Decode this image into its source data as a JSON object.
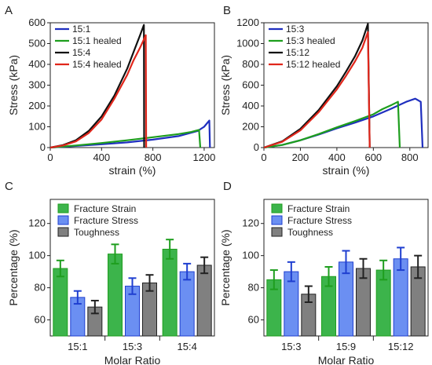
{
  "chart_data": [
    {
      "panel": "A",
      "type": "line",
      "xlabel": "strain (%)",
      "ylabel": "Stress (kPa)",
      "xlim": [
        0,
        1280
      ],
      "ylim": [
        0,
        600
      ],
      "xticks": [
        0,
        400,
        800,
        1200
      ],
      "yticks": [
        0,
        100,
        200,
        300,
        400,
        500,
        600
      ],
      "legend_position": "top-left",
      "series": [
        {
          "name": "15:1",
          "color": "#1f2fbf",
          "x": [
            0,
            200,
            400,
            600,
            800,
            1000,
            1150,
            1200,
            1220,
            1240,
            1245
          ],
          "y": [
            0,
            8,
            16,
            25,
            38,
            55,
            80,
            100,
            115,
            130,
            0
          ]
        },
        {
          "name": "15:1 healed",
          "color": "#1e9e1e",
          "x": [
            0,
            200,
            400,
            600,
            800,
            1000,
            1100,
            1160,
            1170
          ],
          "y": [
            0,
            10,
            22,
            35,
            50,
            65,
            75,
            85,
            0
          ]
        },
        {
          "name": "15:4",
          "color": "#111111",
          "x": [
            0,
            100,
            200,
            300,
            400,
            500,
            600,
            650,
            700,
            730,
            732
          ],
          "y": [
            0,
            12,
            35,
            80,
            150,
            250,
            380,
            460,
            540,
            590,
            0
          ]
        },
        {
          "name": "15:4 healed",
          "color": "#e0261b",
          "x": [
            0,
            100,
            200,
            300,
            400,
            500,
            600,
            650,
            700,
            745,
            748
          ],
          "y": [
            0,
            10,
            30,
            70,
            135,
            235,
            350,
            420,
            480,
            540,
            0
          ]
        }
      ]
    },
    {
      "panel": "B",
      "type": "line",
      "xlabel": "strain (%)",
      "ylabel": "Stress (kPa)",
      "xlim": [
        0,
        900
      ],
      "ylim": [
        0,
        1200
      ],
      "xticks": [
        0,
        200,
        400,
        600,
        800
      ],
      "yticks": [
        0,
        200,
        400,
        600,
        800,
        1000,
        1200
      ],
      "legend_position": "top-left",
      "series": [
        {
          "name": "15:3",
          "color": "#1f2fbf",
          "x": [
            0,
            100,
            200,
            300,
            400,
            500,
            600,
            700,
            780,
            830,
            860,
            870
          ],
          "y": [
            0,
            25,
            70,
            125,
            185,
            240,
            300,
            375,
            440,
            470,
            440,
            0
          ]
        },
        {
          "name": "15:3 healed",
          "color": "#1e9e1e",
          "x": [
            0,
            100,
            200,
            300,
            400,
            500,
            600,
            650,
            700,
            735,
            745
          ],
          "y": [
            0,
            25,
            70,
            130,
            195,
            255,
            320,
            370,
            410,
            440,
            0
          ]
        },
        {
          "name": "15:12",
          "color": "#111111",
          "x": [
            0,
            100,
            200,
            300,
            400,
            450,
            500,
            540,
            570,
            580
          ],
          "y": [
            0,
            60,
            180,
            360,
            590,
            730,
            880,
            1030,
            1190,
            0
          ]
        },
        {
          "name": "15:12 healed",
          "color": "#e0261b",
          "x": [
            0,
            100,
            200,
            300,
            400,
            450,
            500,
            540,
            570,
            580
          ],
          "y": [
            0,
            55,
            165,
            340,
            560,
            690,
            830,
            960,
            1110,
            0
          ]
        }
      ]
    },
    {
      "panel": "C",
      "type": "bar",
      "xlabel": "Molar Ratio",
      "ylabel": "Percentage (%)",
      "ylim": [
        50,
        135
      ],
      "yticks": [
        60,
        80,
        100,
        120
      ],
      "categories": [
        "15:1",
        "15:3",
        "15:4"
      ],
      "legend_position": "top-left",
      "series": [
        {
          "name": "Fracture Strain",
          "color": "#3cb44b",
          "edge": "#1e9e1e",
          "values": [
            92,
            101,
            104
          ],
          "errors": [
            5,
            6,
            6
          ]
        },
        {
          "name": "Fracture Stress",
          "color": "#6b8ff2",
          "edge": "#1f3fd0",
          "values": [
            74,
            81,
            90
          ],
          "errors": [
            4,
            5,
            5
          ]
        },
        {
          "name": "Toughness",
          "color": "#808080",
          "edge": "#222222",
          "values": [
            68,
            83,
            94
          ],
          "errors": [
            4,
            5,
            5
          ]
        }
      ]
    },
    {
      "panel": "D",
      "type": "bar",
      "xlabel": "Molar Ratio",
      "ylabel": "Percentage (%)",
      "ylim": [
        50,
        135
      ],
      "yticks": [
        60,
        80,
        100,
        120
      ],
      "categories": [
        "15:3",
        "15:9",
        "15:12"
      ],
      "legend_position": "top-left",
      "series": [
        {
          "name": "Fracture Strain",
          "color": "#3cb44b",
          "edge": "#1e9e1e",
          "values": [
            85,
            87,
            91
          ],
          "errors": [
            6,
            6,
            6
          ]
        },
        {
          "name": "Fracture Stress",
          "color": "#6b8ff2",
          "edge": "#1f3fd0",
          "values": [
            90,
            96,
            98
          ],
          "errors": [
            6,
            7,
            7
          ]
        },
        {
          "name": "Toughness",
          "color": "#808080",
          "edge": "#222222",
          "values": [
            76,
            92,
            93
          ],
          "errors": [
            5,
            6,
            7
          ]
        }
      ]
    }
  ]
}
